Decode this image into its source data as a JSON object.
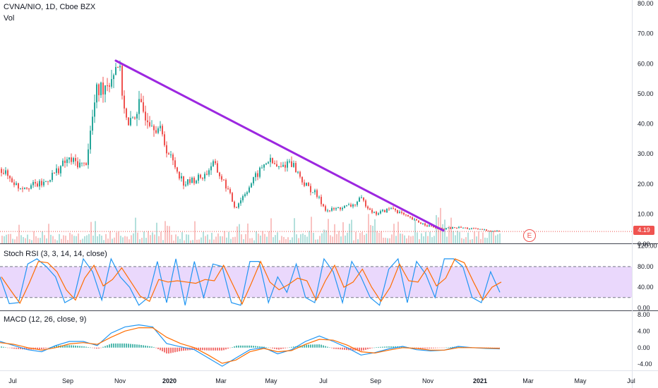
{
  "header": {
    "symbol_line": "CVNA/NIO, 1D, Cboe BZX",
    "volume_label": "Vol"
  },
  "indicators": {
    "stoch_rsi_label": "Stoch RSI (3, 3, 14, 14, close)",
    "macd_label": "MACD (12, 26, close, 9)"
  },
  "price_badge": "4.19",
  "earnings_marker": "E",
  "colors": {
    "up": "#26a69a",
    "down": "#ef5350",
    "trendline": "#9c27e0",
    "stoch_k": "#2196f3",
    "stoch_d": "#ff6d00",
    "stoch_band": "#e1c8fb",
    "macd_line": "#2196f3",
    "signal_line": "#ff6d00",
    "hist_pos": "#26a69a",
    "hist_neg": "#ef5350"
  },
  "chart_data": [
    {
      "type": "candlestick",
      "title": "CVNA/NIO, 1D, Cboe BZX",
      "x_ticks": [
        "Jul",
        "Sep",
        "Nov",
        "2020",
        "Mar",
        "May",
        "Jul",
        "Sep",
        "Nov",
        "2021",
        "Mar",
        "May",
        "Jul"
      ],
      "y_ticks": [
        "80.00",
        "70.00",
        "60.00",
        "50.00",
        "40.00",
        "30.00",
        "20.00",
        "10.00",
        "0.00"
      ],
      "ylim": [
        0,
        80
      ],
      "last_value": 4.19,
      "trendline": {
        "from": {
          "x": "Nov 2019",
          "y": 61
        },
        "to": {
          "x": "Nov 2020",
          "y": 4.5
        }
      },
      "close_path": [
        {
          "x": "Jun 2019",
          "y": 25
        },
        {
          "x": "Jul 2019",
          "y": 19
        },
        {
          "x": "Aug 2019",
          "y": 20
        },
        {
          "x": "Sep 2019",
          "y": 28
        },
        {
          "x": "Sep 2019",
          "y": 26
        },
        {
          "x": "Oct 2019",
          "y": 50
        },
        {
          "x": "Oct 2019",
          "y": 55
        },
        {
          "x": "Nov 2019",
          "y": 61
        },
        {
          "x": "Nov 2019",
          "y": 38
        },
        {
          "x": "Dec 2019",
          "y": 46
        },
        {
          "x": "Dec 2019",
          "y": 38
        },
        {
          "x": "Jan 2020",
          "y": 30
        },
        {
          "x": "Jan 2020",
          "y": 20
        },
        {
          "x": "Feb 2020",
          "y": 23
        },
        {
          "x": "Feb 2020",
          "y": 27
        },
        {
          "x": "Mar 2020",
          "y": 19
        },
        {
          "x": "Mar 2020",
          "y": 12
        },
        {
          "x": "Apr 2020",
          "y": 22
        },
        {
          "x": "Apr 2020",
          "y": 28
        },
        {
          "x": "May 2020",
          "y": 25
        },
        {
          "x": "May 2020",
          "y": 28
        },
        {
          "x": "Jun 2020",
          "y": 20
        },
        {
          "x": "Jun 2020",
          "y": 17
        },
        {
          "x": "Jul 2020",
          "y": 11
        },
        {
          "x": "Jul 2020",
          "y": 12
        },
        {
          "x": "Aug 2020",
          "y": 13
        },
        {
          "x": "Aug 2020",
          "y": 15
        },
        {
          "x": "Sep 2020",
          "y": 10
        },
        {
          "x": "Sep 2020",
          "y": 12
        },
        {
          "x": "Oct 2020",
          "y": 9
        },
        {
          "x": "Oct 2020",
          "y": 7
        },
        {
          "x": "Nov 2020",
          "y": 5
        },
        {
          "x": "Dec 2020",
          "y": 5.5
        },
        {
          "x": "Jan 2021",
          "y": 4.8
        },
        {
          "x": "Jan 2021",
          "y": 4.19
        }
      ]
    },
    {
      "type": "line",
      "title": "Stoch RSI (3, 3, 14, 14, close)",
      "y_ticks": [
        "120.00",
        "80.00",
        "40.00",
        "0.00"
      ],
      "ylim": [
        -5,
        125
      ],
      "bands": [
        20,
        80
      ],
      "series": [
        {
          "values": [
            60,
            8,
            10,
            85,
            95,
            80,
            60,
            10,
            20,
            95,
            70,
            15,
            95,
            60,
            40,
            5,
            20,
            90,
            10,
            95,
            5,
            90,
            20,
            85,
            80,
            10,
            5,
            90,
            90,
            10,
            60,
            30,
            85,
            20,
            10,
            95,
            70,
            10,
            90,
            60,
            20,
            5,
            75,
            95,
            10,
            90,
            65,
            20,
            95,
            95,
            80,
            20,
            10,
            70,
            30
          ]
        }
      ]
    },
    {
      "type": "line",
      "title": "MACD (12, 26, close, 9)",
      "y_ticks": [
        "8.00",
        "4.00",
        "0.00",
        "-4.00"
      ],
      "ylim": [
        -5.5,
        9
      ],
      "series": [
        {
          "values": [
            1.5,
            0.5,
            -0.5,
            -1.0,
            0.5,
            1.5,
            1.5,
            0.5,
            3.5,
            5.0,
            5.5,
            5.0,
            1.0,
            0.2,
            -0.5,
            -2.5,
            -4.5,
            -2.5,
            -0.5,
            0.0,
            -1.5,
            -0.5,
            1.5,
            2.8,
            1.5,
            0.0,
            -1.8,
            -1.2,
            -0.3,
            0.3,
            -0.5,
            -0.8,
            -0.6,
            0.3,
            0.0,
            -0.2,
            -0.3
          ]
        },
        {
          "values": [
            1.2,
            0.8,
            0.0,
            -0.6,
            0.0,
            0.9,
            1.2,
            0.8,
            2.5,
            4.0,
            4.8,
            4.8,
            2.5,
            1.0,
            0.0,
            -1.8,
            -3.8,
            -3.0,
            -1.0,
            -0.2,
            -1.0,
            -0.7,
            0.8,
            2.0,
            1.8,
            0.6,
            -1.0,
            -1.3,
            -0.6,
            0.0,
            -0.2,
            -0.6,
            -0.6,
            0.0,
            0.0,
            -0.1,
            -0.2
          ]
        }
      ]
    }
  ]
}
